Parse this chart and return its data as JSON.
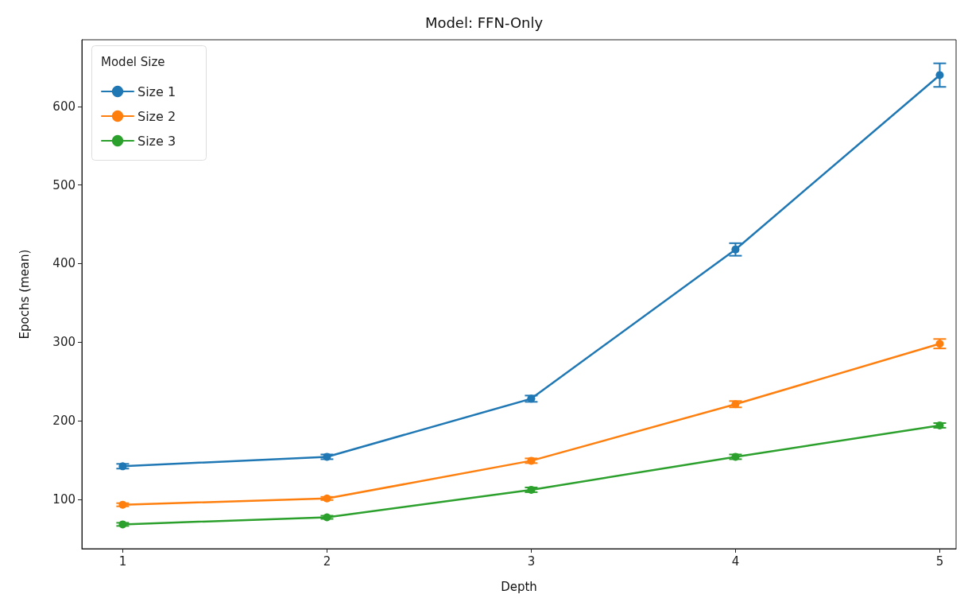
{
  "chart_data": {
    "type": "line",
    "title": "Model: FFN-Only",
    "xlabel": "Depth",
    "ylabel": "Epochs (mean)",
    "legend_title": "Model Size",
    "x": [
      1,
      2,
      3,
      4,
      5
    ],
    "series": [
      {
        "name": "Size 1",
        "color": "#1f77b4",
        "values": [
          142,
          154,
          228,
          418,
          640
        ],
        "errors": [
          3,
          3,
          4,
          8,
          15
        ]
      },
      {
        "name": "Size 2",
        "color": "#ff7f0e",
        "values": [
          93,
          101,
          149,
          221,
          298
        ],
        "errors": [
          2,
          2,
          3,
          4,
          6
        ]
      },
      {
        "name": "Size 3",
        "color": "#2ca02c",
        "values": [
          68,
          77,
          112,
          154,
          194
        ],
        "errors": [
          2,
          2,
          3,
          3,
          3
        ]
      }
    ],
    "xlim": [
      0.8,
      5.08
    ],
    "xticks": [
      1,
      2,
      3,
      4,
      5
    ],
    "ylim": [
      37,
      685
    ],
    "yticks": [
      100,
      200,
      300,
      400,
      500,
      600
    ],
    "grid": false,
    "legend": "top left",
    "marker": "circle",
    "line_style": "solid"
  }
}
